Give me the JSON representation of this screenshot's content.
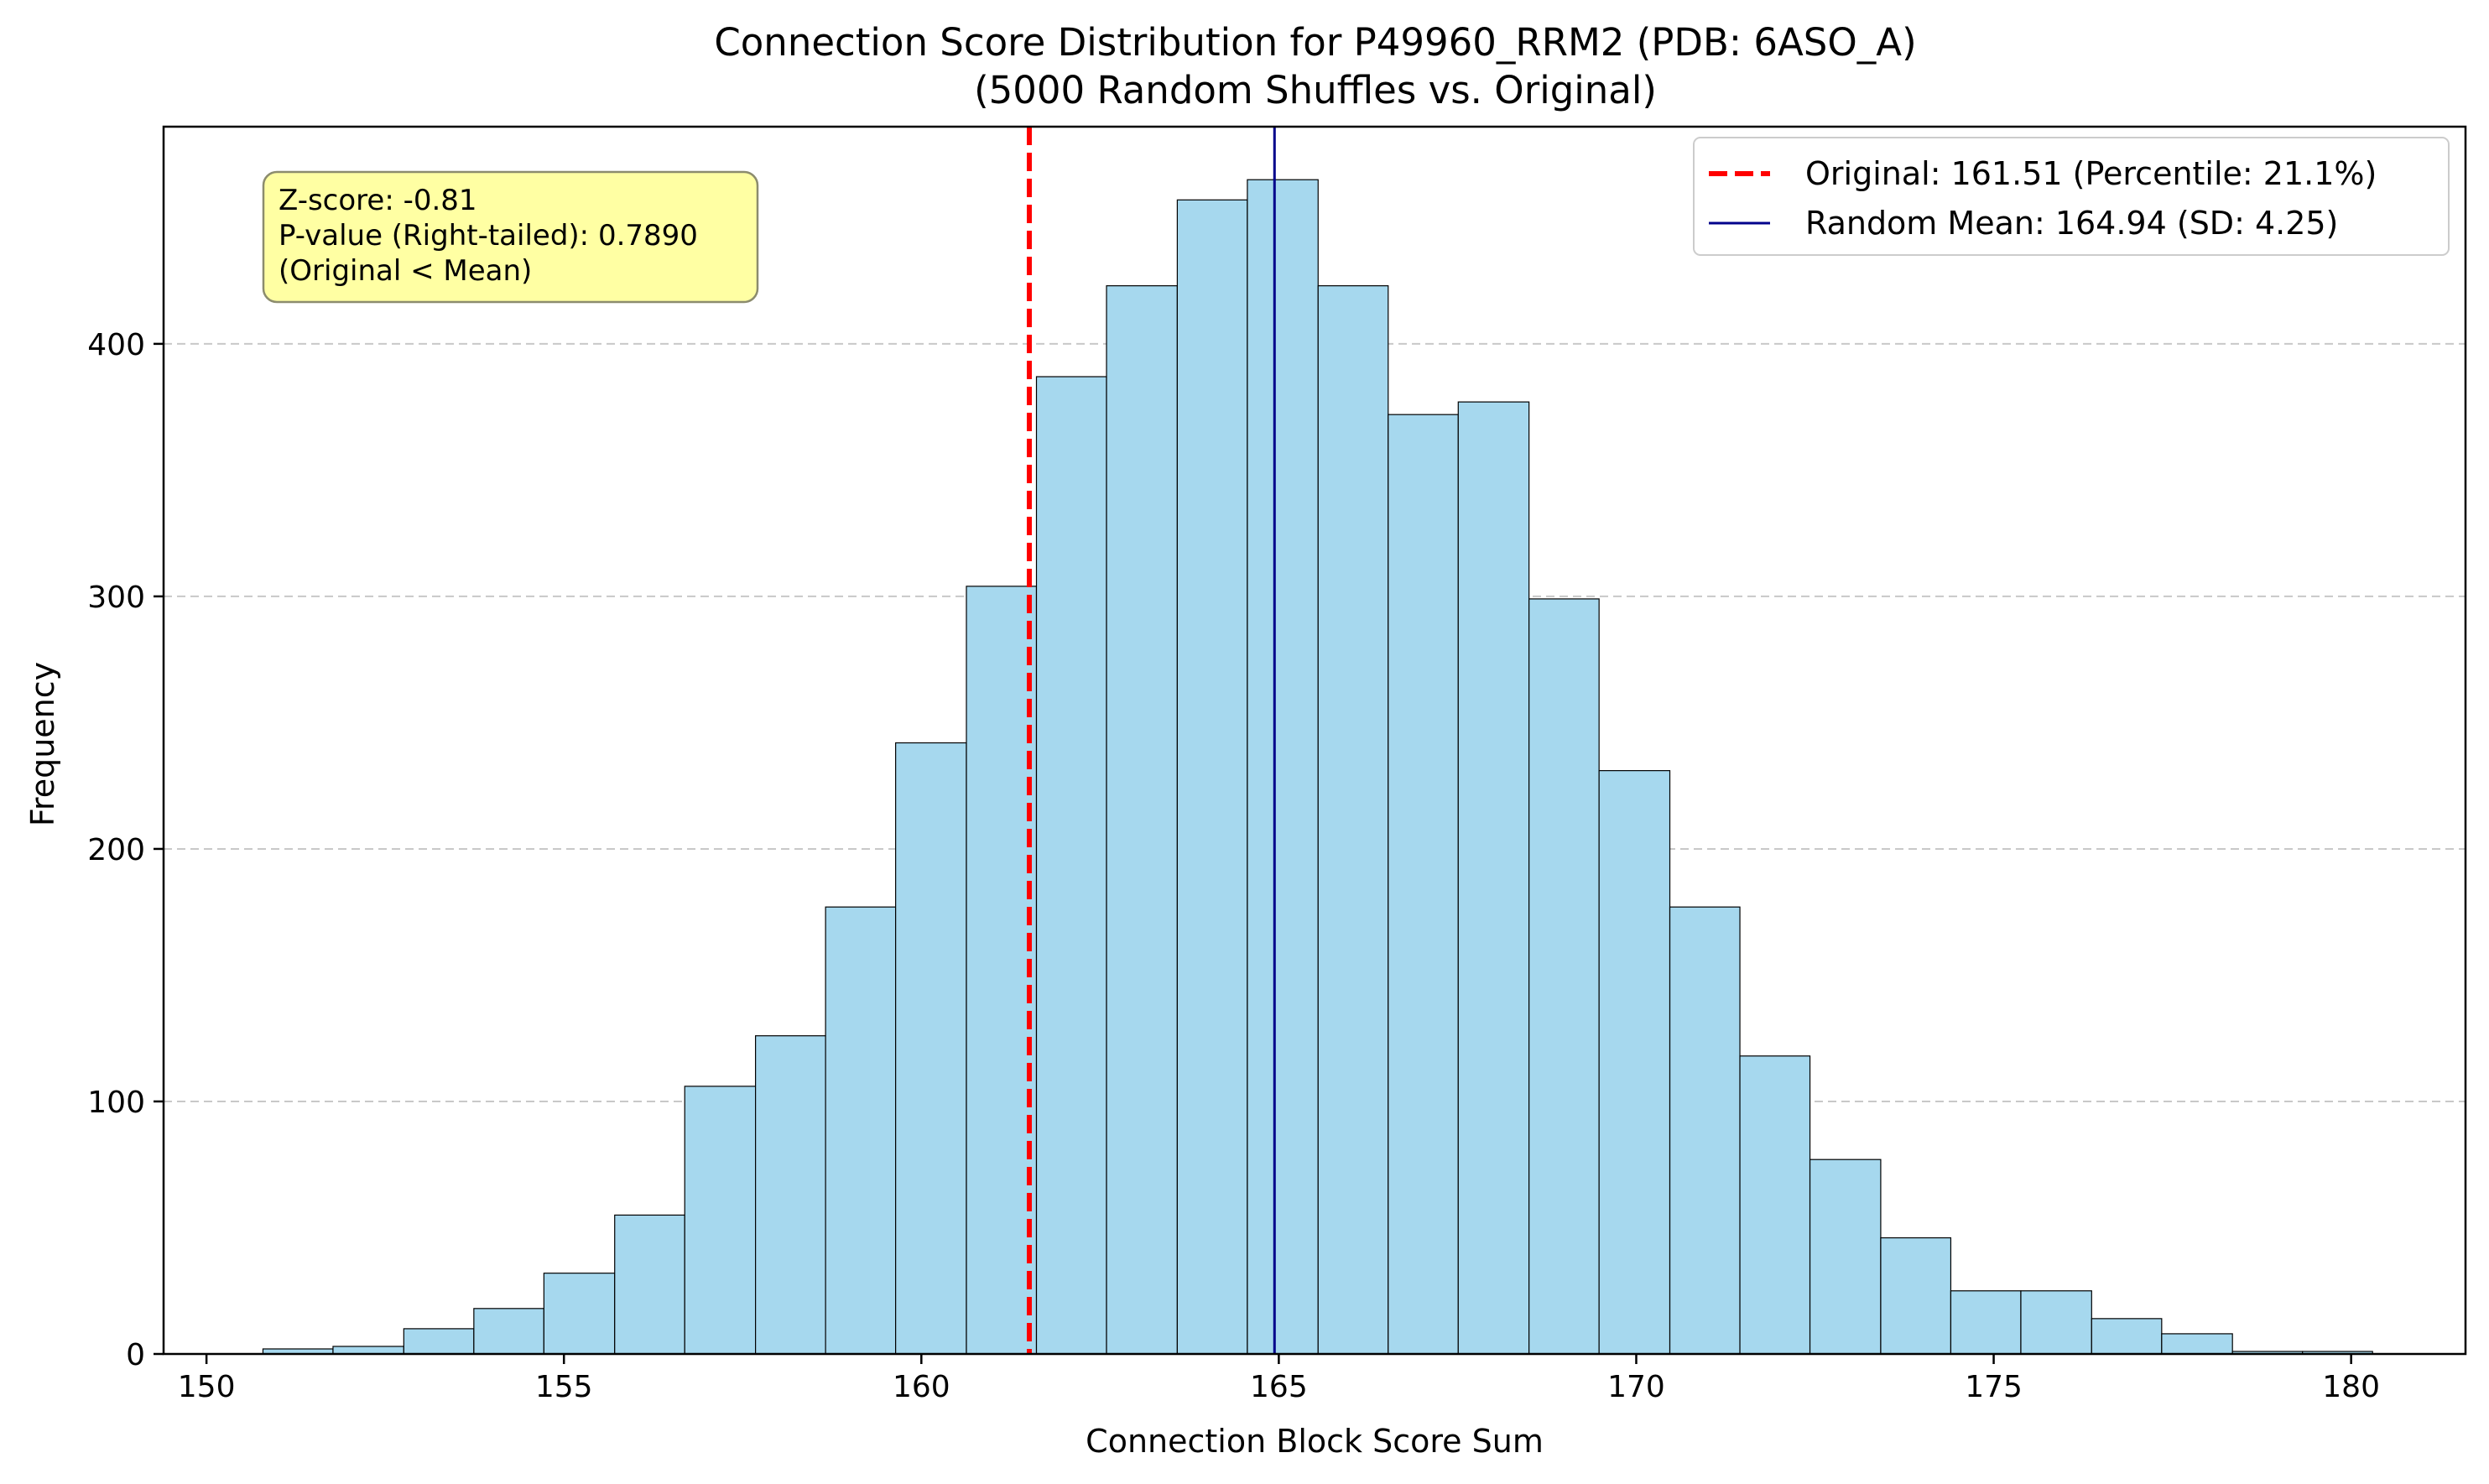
{
  "chart_data": {
    "type": "bar",
    "title": "Connection Score Distribution for P49960_RRM2 (PDB: 6ASO_A)",
    "subtitle": "(5000 Random Shuffles vs. Original)",
    "xlabel": "Connection Block Score Sum",
    "ylabel": "Frequency",
    "xlim": [
      149.4,
      181.6
    ],
    "ylim": [
      0,
      486
    ],
    "xticks": [
      150,
      155,
      160,
      165,
      170,
      175,
      180
    ],
    "yticks": [
      0,
      100,
      200,
      300,
      400
    ],
    "grid": "y-dashed",
    "bin_edges": [
      150.79,
      151.77,
      152.76,
      153.74,
      154.72,
      155.71,
      156.69,
      157.68,
      158.66,
      159.64,
      160.63,
      161.61,
      162.59,
      163.58,
      164.56,
      165.55,
      166.53,
      167.51,
      168.5,
      169.48,
      170.47,
      171.45,
      172.43,
      173.42,
      174.4,
      175.38,
      176.37,
      177.35,
      178.34,
      179.32,
      180.3
    ],
    "values": [
      2,
      3,
      10,
      18,
      32,
      55,
      106,
      126,
      177,
      242,
      304,
      387,
      423,
      457,
      465,
      423,
      372,
      377,
      299,
      231,
      177,
      118,
      77,
      46,
      25,
      25,
      14,
      8,
      1,
      1
    ],
    "bar_color": "#a6d8ee",
    "bar_edge_color": "#000000",
    "vlines": [
      {
        "name": "original",
        "x": 161.51,
        "color": "#ff0000",
        "style": "dashed"
      },
      {
        "name": "random-mean",
        "x": 164.94,
        "color": "#00008b",
        "style": "solid"
      }
    ],
    "legend": {
      "placement": "top-right",
      "entries": [
        {
          "label": "Original: 161.51 (Percentile: 21.1%)",
          "color": "#ff0000",
          "style": "dashed"
        },
        {
          "label": "Random Mean: 164.94 (SD: 4.25)",
          "color": "#00008b",
          "style": "solid"
        }
      ]
    },
    "annotation": {
      "lines": [
        "Z-score: -0.81",
        "P-value (Right-tailed): 0.7890",
        "(Original < Mean)"
      ],
      "background": "#ffff99",
      "placement": "top-left"
    }
  }
}
